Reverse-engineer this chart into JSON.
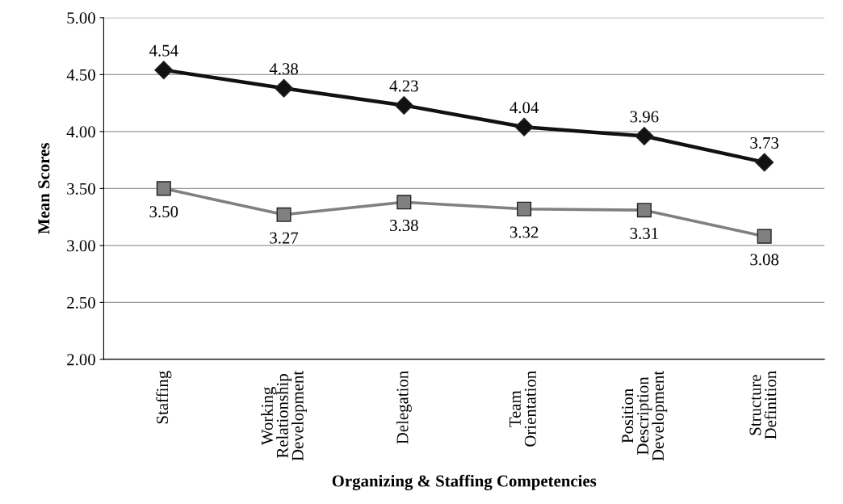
{
  "chart_data": {
    "type": "line",
    "xlabel": "Organizing & Staffing Competencies",
    "ylabel": "Mean Scores",
    "categories": [
      "Staffing",
      "Working\nRelationship\nDevelopment",
      "Delegation",
      "Team\nOrientation",
      "Position\nDescription\nDevelopment",
      "Structure\nDefinition"
    ],
    "series": [
      {
        "color": "#111111",
        "marker": "diamond",
        "values": [
          4.54,
          4.38,
          4.23,
          4.04,
          3.96,
          3.73
        ],
        "value_labels": [
          "4.54",
          "4.38",
          "4.23",
          "4.04",
          "3.96",
          "3.73"
        ]
      },
      {
        "color": "#808080",
        "marker": "square",
        "values": [
          3.5,
          3.27,
          3.38,
          3.32,
          3.31,
          3.08
        ],
        "value_labels": [
          "3.50",
          "3.27",
          "3.38",
          "3.32",
          "3.31",
          "3.08"
        ]
      }
    ],
    "ylim": [
      2,
      5
    ],
    "yticks": [
      {
        "value": 2,
        "label": "2.00"
      },
      {
        "value": 2.5,
        "label": "2.50"
      },
      {
        "value": 3,
        "label": "3.00"
      },
      {
        "value": 3.5,
        "label": "3.50"
      },
      {
        "value": 4,
        "label": "4.00"
      },
      {
        "value": 4.5,
        "label": "4.50"
      },
      {
        "value": 5,
        "label": "5.00"
      }
    ],
    "grid": "y",
    "legend": false,
    "line_style": "solid"
  }
}
